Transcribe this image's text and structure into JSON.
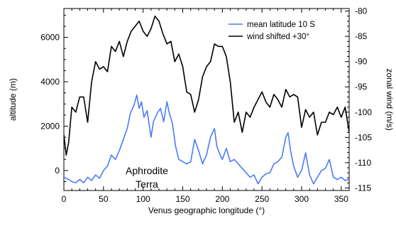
{
  "chart_data": {
    "type": "line",
    "xlabel": "Venus geographic longitude (°)",
    "ylabel_left": "altitude (m)",
    "ylabel_right": "zonal wind (m/s)",
    "xlim": [
      0,
      360
    ],
    "ylim_left": [
      -900,
      7300
    ],
    "ylim_right": [
      -115.5,
      -79.5
    ],
    "x_ticks": [
      0,
      50,
      100,
      150,
      200,
      250,
      300,
      350
    ],
    "y_left_ticks": [
      0,
      2000,
      4000,
      6000
    ],
    "y_right_ticks": [
      -80,
      -85,
      -90,
      -95,
      -100,
      -105,
      -110,
      -115
    ],
    "grid": false,
    "legend_position": "top-right",
    "annotation": [
      "Aphrodite",
      "Terra"
    ],
    "colors": {
      "altitude": "#4a7cf6",
      "wind": "#000000"
    },
    "series": [
      {
        "name": "mean latitude 10 S",
        "axis": "left",
        "x": [
          0,
          3,
          6,
          10,
          15,
          20,
          25,
          30,
          35,
          40,
          45,
          50,
          55,
          60,
          65,
          70,
          75,
          80,
          84,
          88,
          92,
          95,
          98,
          101,
          105,
          110,
          113,
          118,
          122,
          126,
          130,
          133,
          137,
          141,
          145,
          150,
          155,
          160,
          165,
          170,
          175,
          180,
          185,
          190,
          193,
          196,
          200,
          205,
          210,
          215,
          220,
          225,
          230,
          235,
          240,
          245,
          250,
          255,
          260,
          265,
          270,
          275,
          280,
          283,
          286,
          290,
          295,
          300,
          305,
          310,
          315,
          320,
          325,
          330,
          335,
          340,
          345,
          350,
          355,
          360
        ],
        "values": [
          -300,
          -350,
          -400,
          -500,
          -550,
          -400,
          -550,
          -300,
          -450,
          -200,
          -350,
          0,
          200,
          700,
          500,
          900,
          1400,
          1900,
          2600,
          2900,
          3400,
          2800,
          3100,
          2400,
          2700,
          1500,
          2200,
          2600,
          2800,
          2200,
          3100,
          2600,
          2100,
          1100,
          500,
          400,
          300,
          400,
          1400,
          900,
          300,
          700,
          1500,
          1900,
          1100,
          800,
          500,
          1000,
          400,
          500,
          300,
          100,
          -100,
          -300,
          -200,
          -600,
          -300,
          -150,
          -100,
          300,
          400,
          600,
          1500,
          1700,
          900,
          200,
          -300,
          0,
          800,
          -200,
          -600,
          -300,
          0,
          100,
          500,
          -300,
          -400,
          -300,
          -450,
          -400
        ]
      },
      {
        "name": "wind shifted +30°",
        "axis": "right",
        "x": [
          0,
          3,
          6,
          10,
          15,
          20,
          25,
          30,
          35,
          40,
          45,
          50,
          55,
          60,
          65,
          70,
          75,
          80,
          85,
          90,
          95,
          100,
          105,
          110,
          115,
          120,
          125,
          130,
          135,
          140,
          145,
          150,
          155,
          160,
          165,
          170,
          175,
          180,
          185,
          190,
          195,
          200,
          205,
          210,
          215,
          220,
          225,
          230,
          235,
          240,
          245,
          250,
          255,
          260,
          265,
          270,
          275,
          280,
          285,
          290,
          295,
          300,
          305,
          310,
          315,
          320,
          325,
          330,
          335,
          340,
          345,
          350,
          355,
          360
        ],
        "values": [
          -104.5,
          -108.5,
          -106,
          -99,
          -100,
          -97,
          -97,
          -102,
          -94,
          -90,
          -91.5,
          -91,
          -92,
          -87,
          -88,
          -86,
          -89,
          -86,
          -84,
          -83,
          -82,
          -84,
          -85,
          -83.5,
          -81,
          -82,
          -84.5,
          -86.5,
          -86,
          -90,
          -88.5,
          -91,
          -96,
          -96.5,
          -100,
          -97.5,
          -93,
          -91,
          -90,
          -86.5,
          -87,
          -87,
          -89,
          -94,
          -102,
          -100,
          -104,
          -100,
          -101,
          -99,
          -97.5,
          -96,
          -98,
          -99,
          -96.5,
          -97.5,
          -99,
          -95.5,
          -97,
          -96.5,
          -97,
          -103,
          -99.5,
          -101,
          -100,
          -104.5,
          -102,
          -102,
          -100,
          -100.5,
          -99,
          -101,
          -99,
          -104
        ]
      }
    ]
  }
}
